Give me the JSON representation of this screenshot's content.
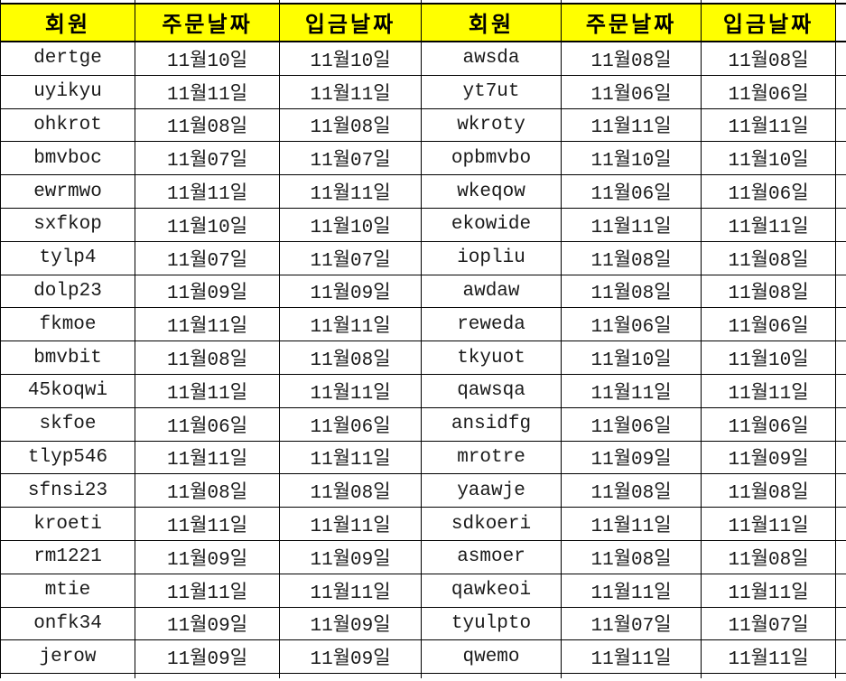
{
  "table": {
    "column_keys": [
      "member",
      "order-date",
      "deposit-date",
      "member",
      "order-date",
      "deposit-date"
    ],
    "headers": [
      "회원",
      "주문날짜",
      "입금날짜",
      "회원",
      "주문날짜",
      "입금날짜"
    ],
    "rows": [
      [
        "dertge",
        "11월10일",
        "11월10일",
        "awsda",
        "11월08일",
        "11월08일"
      ],
      [
        "uyikyu",
        "11월11일",
        "11월11일",
        "yt7ut",
        "11월06일",
        "11월06일"
      ],
      [
        "ohkrot",
        "11월08일",
        "11월08일",
        "wkroty",
        "11월11일",
        "11월11일"
      ],
      [
        "bmvboc",
        "11월07일",
        "11월07일",
        "opbmvbo",
        "11월10일",
        "11월10일"
      ],
      [
        "ewrmwo",
        "11월11일",
        "11월11일",
        "wkeqow",
        "11월06일",
        "11월06일"
      ],
      [
        "sxfkop",
        "11월10일",
        "11월10일",
        "ekowide",
        "11월11일",
        "11월11일"
      ],
      [
        "tylp4",
        "11월07일",
        "11월07일",
        "iopliu",
        "11월08일",
        "11월08일"
      ],
      [
        "dolp23",
        "11월09일",
        "11월09일",
        "awdaw",
        "11월08일",
        "11월08일"
      ],
      [
        "fkmoe",
        "11월11일",
        "11월11일",
        "reweda",
        "11월06일",
        "11월06일"
      ],
      [
        "bmvbit",
        "11월08일",
        "11월08일",
        "tkyuot",
        "11월10일",
        "11월10일"
      ],
      [
        "45koqwi",
        "11월11일",
        "11월11일",
        "qawsqa",
        "11월11일",
        "11월11일"
      ],
      [
        "skfoe",
        "11월06일",
        "11월06일",
        "ansidfg",
        "11월06일",
        "11월06일"
      ],
      [
        "tlyp546",
        "11월11일",
        "11월11일",
        "mrotre",
        "11월09일",
        "11월09일"
      ],
      [
        "sfnsi23",
        "11월08일",
        "11월08일",
        "yaawje",
        "11월08일",
        "11월08일"
      ],
      [
        "kroeti",
        "11월11일",
        "11월11일",
        "sdkoeri",
        "11월11일",
        "11월11일"
      ],
      [
        "rm1221",
        "11월09일",
        "11월09일",
        "asmoer",
        "11월08일",
        "11월08일"
      ],
      [
        "mtie",
        "11월11일",
        "11월11일",
        "qawkeoi",
        "11월11일",
        "11월11일"
      ],
      [
        "onfk34",
        "11월09일",
        "11월09일",
        "tyulpto",
        "11월07일",
        "11월07일"
      ],
      [
        "jerow",
        "11월09일",
        "11월09일",
        "qwemo",
        "11월11일",
        "11월11일"
      ]
    ],
    "colors": {
      "header_bg": "#FFFF00",
      "border": "#000000",
      "header_text": "#000000",
      "cell_text": "#1a1a1a",
      "cell_bg": "#FFFFFF"
    }
  }
}
